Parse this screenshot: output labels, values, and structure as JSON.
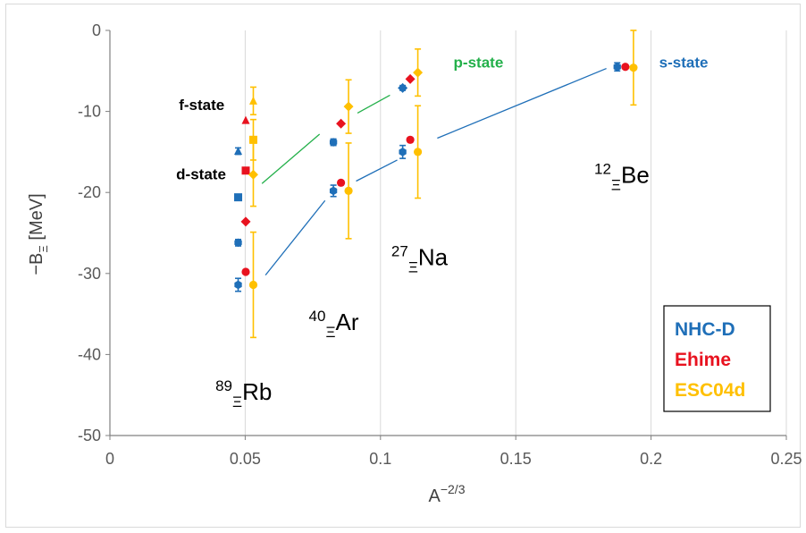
{
  "chart_data": {
    "type": "scatter",
    "xlabel": {
      "main": "A",
      "sup": "−2/3"
    },
    "ylabel": {
      "main": "−B",
      "sub": "Ξ",
      "rest": " [MeV]"
    },
    "xlim": [
      0,
      0.25
    ],
    "ylim": [
      -50,
      0
    ],
    "x_ticks": [
      "0",
      "0.05",
      "0.1",
      "0.15",
      "0.2",
      "0.25"
    ],
    "y_ticks": [
      "0",
      "-10",
      "-20",
      "-30",
      "-40",
      "-50"
    ],
    "grid": "vertical",
    "legend_position": "bottom-right",
    "colors": {
      "NHC-D": "#1f6fb8",
      "Ehime": "#e8121f",
      "ESC04d": "#ffc000",
      "p_line": "#23b04a",
      "s_line": "#1f6fb8",
      "grid": "#d9d9d9",
      "axis": "#808080"
    },
    "series": [
      {
        "name": "NHC-D",
        "color": "#1f6fb8",
        "points": [
          {
            "x": 0.0474,
            "y": -31.4,
            "err": 0.8,
            "marker": "hexagon"
          },
          {
            "x": 0.0474,
            "y": -26.2,
            "err": 0.4,
            "marker": "hexagon"
          },
          {
            "x": 0.0474,
            "y": -20.6,
            "err": 0.3,
            "marker": "square"
          },
          {
            "x": 0.0474,
            "y": -14.9,
            "err": 0.4,
            "marker": "triangle"
          },
          {
            "x": 0.0826,
            "y": -19.8,
            "err": 0.7,
            "marker": "hexagon"
          },
          {
            "x": 0.0826,
            "y": -13.8,
            "err": 0.4,
            "marker": "hexagon"
          },
          {
            "x": 0.1082,
            "y": -15.0,
            "err": 0.8,
            "marker": "hexagon"
          },
          {
            "x": 0.1082,
            "y": -7.1,
            "err": 0.3,
            "marker": "diamond"
          },
          {
            "x": 0.1875,
            "y": -4.5,
            "err": 0.5,
            "marker": "hexagon"
          }
        ]
      },
      {
        "name": "Ehime",
        "color": "#e8121f",
        "points": [
          {
            "x": 0.0502,
            "y": -29.8,
            "marker": "circle"
          },
          {
            "x": 0.0502,
            "y": -23.6,
            "marker": "diamond"
          },
          {
            "x": 0.0502,
            "y": -17.3,
            "marker": "square"
          },
          {
            "x": 0.0502,
            "y": -11.1,
            "marker": "triangle"
          },
          {
            "x": 0.0854,
            "y": -18.8,
            "marker": "circle"
          },
          {
            "x": 0.0854,
            "y": -11.5,
            "marker": "diamond"
          },
          {
            "x": 0.111,
            "y": -13.5,
            "marker": "circle"
          },
          {
            "x": 0.111,
            "y": -6.0,
            "marker": "diamond"
          },
          {
            "x": 0.1905,
            "y": -4.5,
            "marker": "circle"
          }
        ]
      },
      {
        "name": "ESC04d",
        "color": "#ffc000",
        "points": [
          {
            "x": 0.053,
            "y": -31.4,
            "err": 6.5,
            "marker": "circle"
          },
          {
            "x": 0.053,
            "y": -17.8,
            "err": 3.9,
            "marker": "diamond"
          },
          {
            "x": 0.053,
            "y": -13.5,
            "err": 2.5,
            "marker": "square"
          },
          {
            "x": 0.053,
            "y": -8.7,
            "err": 1.7,
            "marker": "triangle"
          },
          {
            "x": 0.0882,
            "y": -19.8,
            "err": 5.9,
            "marker": "circle"
          },
          {
            "x": 0.0882,
            "y": -9.4,
            "err": 3.3,
            "marker": "diamond"
          },
          {
            "x": 0.1138,
            "y": -15.0,
            "err": 5.7,
            "marker": "circle"
          },
          {
            "x": 0.1138,
            "y": -5.2,
            "err": 2.9,
            "marker": "diamond"
          },
          {
            "x": 0.1935,
            "y": -4.6,
            "err": 4.6,
            "marker": "circle"
          }
        ]
      }
    ],
    "trend_lines": [
      {
        "name": "s-state",
        "color": "#1f6fb8",
        "segments": [
          [
            [
              0.0575,
              -30.2
            ],
            [
              0.0795,
              -21.0
            ]
          ],
          [
            [
              0.091,
              -18.6
            ],
            [
              0.1062,
              -16.0
            ]
          ],
          [
            [
              0.121,
              -13.3
            ],
            [
              0.1835,
              -4.7
            ]
          ]
        ]
      },
      {
        "name": "p-state",
        "color": "#23b04a",
        "segments": [
          [
            [
              0.0562,
              -18.9
            ],
            [
              0.0775,
              -12.8
            ]
          ],
          [
            [
              0.0915,
              -10.2
            ],
            [
              0.1035,
              -8.0
            ]
          ]
        ]
      }
    ],
    "state_labels": [
      {
        "text": "f-state",
        "x": 0.0255,
        "y": -9.8,
        "color": "#000000"
      },
      {
        "text": "d-state",
        "x": 0.0245,
        "y": -18.4,
        "color": "#000000"
      },
      {
        "text": "p-state",
        "x": 0.127,
        "y": -4.6,
        "color": "#23b04a"
      },
      {
        "text": "s-state",
        "x": 0.203,
        "y": -4.6,
        "color": "#1f6fb8"
      }
    ],
    "nucleus_labels": [
      {
        "mass": "89",
        "sub": "Ξ",
        "elem": "Rb",
        "x": 0.039,
        "y": -45.6
      },
      {
        "mass": "40",
        "sub": "Ξ",
        "elem": "Ar",
        "x": 0.0735,
        "y": -37.0
      },
      {
        "mass": "27",
        "sub": "Ξ",
        "elem": "Na",
        "x": 0.104,
        "y": -29.0
      },
      {
        "mass": "12",
        "sub": "Ξ",
        "elem": "Be",
        "x": 0.179,
        "y": -18.8
      }
    ]
  }
}
